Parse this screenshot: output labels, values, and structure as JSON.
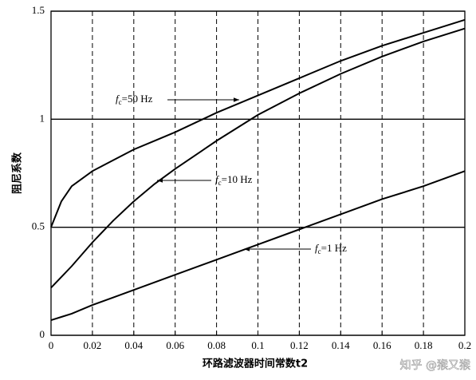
{
  "chart_data": {
    "type": "line",
    "x_label": "环路滤波器时间常数t2",
    "y_label": "阻尼系数",
    "x": [
      0,
      0.005,
      0.01,
      0.02,
      0.03,
      0.04,
      0.05,
      0.06,
      0.08,
      0.1,
      0.12,
      0.14,
      0.16,
      0.18,
      0.2
    ],
    "series": [
      {
        "name": "fc=50 Hz",
        "color": "#000000",
        "values": [
          0.5,
          0.62,
          0.69,
          0.76,
          0.81,
          0.86,
          0.9,
          0.94,
          1.03,
          1.11,
          1.19,
          1.27,
          1.34,
          1.4,
          1.46
        ]
      },
      {
        "name": "fc=10 Hz",
        "color": "#000000",
        "values": [
          0.22,
          0.27,
          0.32,
          0.43,
          0.53,
          0.62,
          0.7,
          0.77,
          0.9,
          1.02,
          1.12,
          1.21,
          1.29,
          1.36,
          1.42
        ]
      },
      {
        "name": "fc=1 Hz",
        "color": "#000000",
        "values": [
          0.07,
          0.085,
          0.1,
          0.14,
          0.175,
          0.21,
          0.245,
          0.28,
          0.35,
          0.42,
          0.49,
          0.56,
          0.63,
          0.69,
          0.76
        ]
      }
    ],
    "xlim": [
      0,
      0.2
    ],
    "xticks": [
      0,
      0.02,
      0.04,
      0.06,
      0.08,
      0.1,
      0.12,
      0.14,
      0.16,
      0.18,
      0.2
    ],
    "ylim": [
      0,
      1.5
    ],
    "yticks": [
      0,
      0.5,
      1,
      1.5
    ],
    "grid": true
  },
  "watermark": "知乎 @猴又猴"
}
